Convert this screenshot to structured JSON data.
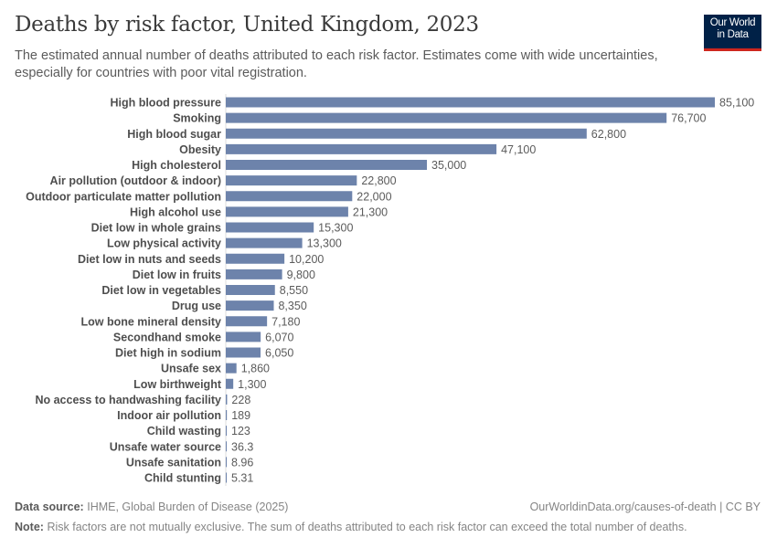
{
  "header": {
    "title": "Deaths by risk factor, United Kingdom, 2023",
    "subtitle": "The estimated annual number of deaths attributed to each risk factor. Estimates come with wide uncertainties, especially for countries with poor vital registration.",
    "logo_line1": "Our World",
    "logo_line2": "in Data"
  },
  "chart_data": {
    "type": "bar",
    "orientation": "horizontal",
    "categories": [
      "High blood pressure",
      "Smoking",
      "High blood sugar",
      "Obesity",
      "High cholesterol",
      "Air pollution (outdoor & indoor)",
      "Outdoor particulate matter pollution",
      "High alcohol use",
      "Diet low in whole grains",
      "Low physical activity",
      "Diet low in nuts and seeds",
      "Diet low in fruits",
      "Diet low in vegetables",
      "Drug use",
      "Low bone mineral density",
      "Secondhand smoke",
      "Diet high in sodium",
      "Unsafe sex",
      "Low birthweight",
      "No access to handwashing facility",
      "Indoor air pollution",
      "Child wasting",
      "Unsafe water source",
      "Unsafe sanitation",
      "Child stunting"
    ],
    "values": [
      85100,
      76700,
      62800,
      47100,
      35000,
      22800,
      22000,
      21300,
      15300,
      13300,
      10200,
      9800,
      8550,
      8350,
      7180,
      6070,
      6050,
      1860,
      1300,
      228,
      189,
      123,
      36.3,
      8.96,
      5.31
    ],
    "value_labels": [
      "85,100",
      "76,700",
      "62,800",
      "47,100",
      "35,000",
      "22,800",
      "22,000",
      "21,300",
      "15,300",
      "13,300",
      "10,200",
      "9,800",
      "8,550",
      "8,350",
      "7,180",
      "6,070",
      "6,050",
      "1,860",
      "1,300",
      "228",
      "189",
      "123",
      "36.3",
      "8.96",
      "5.31"
    ],
    "bar_color": "#6d83ab",
    "grid": false
  },
  "footer": {
    "source_label": "Data source:",
    "source": "IHME, Global Burden of Disease (2025)",
    "url": "OurWorldinData.org/causes-of-death | CC BY",
    "note_label": "Note:",
    "note": "Risk factors are not mutually exclusive. The sum of deaths attributed to each risk factor can exceed the total number of deaths."
  }
}
